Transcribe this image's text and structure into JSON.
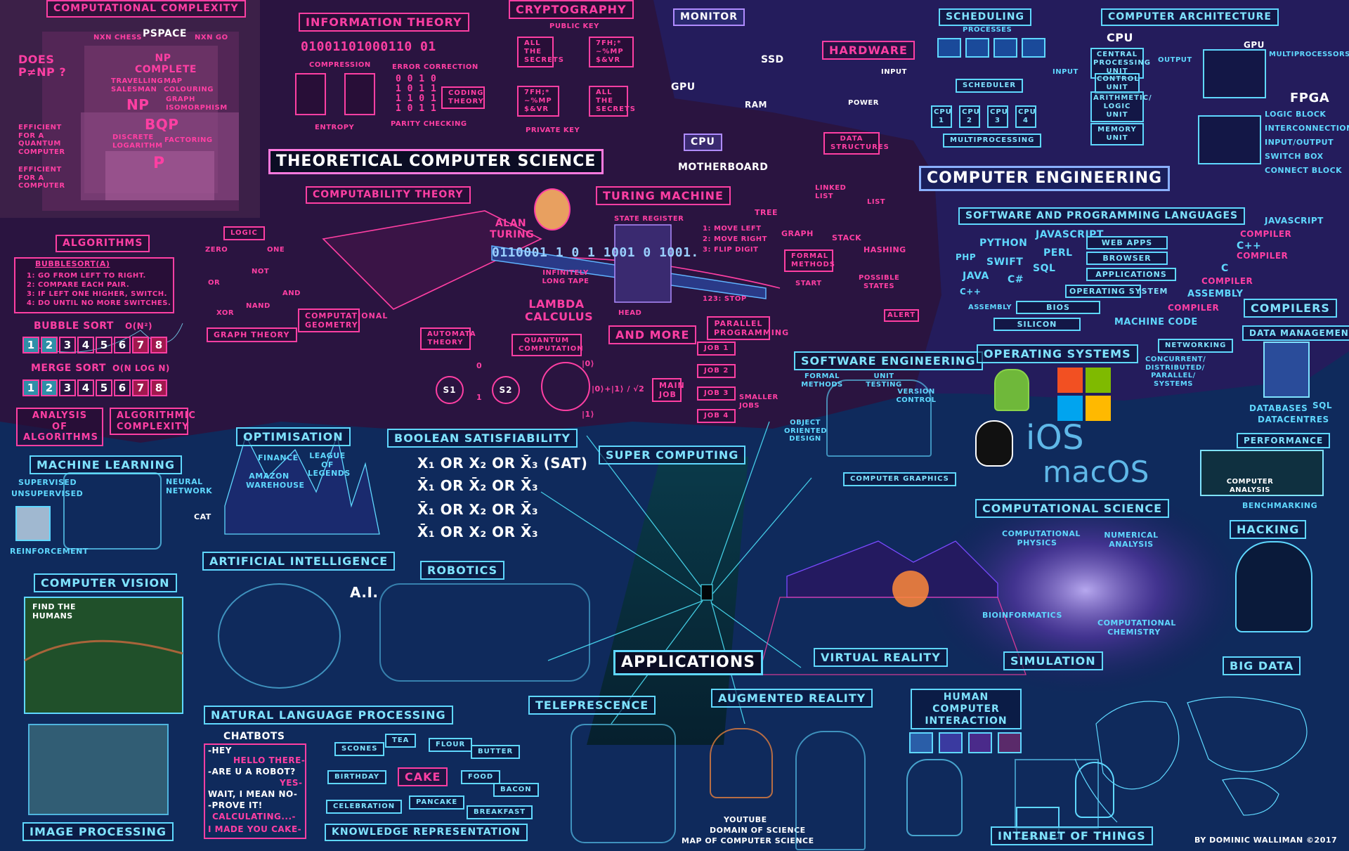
{
  "colors": {
    "background": "#0e1640",
    "theory_region": "#2a1440",
    "engineering_region": "#241c5c",
    "applications_region": "#0f2a5c",
    "theory_accent": "#ff3fa3",
    "applications_accent": "#5fd8ff"
  },
  "titles": {
    "theoretical": "THEORETICAL COMPUTER SCIENCE",
    "engineering": "COMPUTER ENGINEERING",
    "applications": "APPLICATIONS"
  },
  "complexity": {
    "header": "COMPUTATIONAL COMPLEXITY",
    "question": "DOES P≠NP ?",
    "nxn_chess": "NXN CHESS",
    "pspace": "PSPACE",
    "nxn_go": "NXN GO",
    "np_complete": "NP COMPLETE",
    "travelling_salesman": "TRAVELLING SALESMAN",
    "map_colouring": "MAP COLOURING",
    "np": "NP",
    "graph_isomorphism": "GRAPH ISOMORPHISM",
    "bqp": "BQP",
    "discrete_logarithm": "DISCRETE LOGARITHM",
    "factoring": "FACTORING",
    "p": "P",
    "efficient_quantum": "EFFICIENT FOR A QUANTUM COMPUTER",
    "efficient_computer": "EFFICIENT FOR A COMPUTER"
  },
  "info_theory": {
    "header": "INFORMATION THEORY",
    "bits": "01001101000110 01",
    "compression": "COMPRESSION",
    "error_correction": "ERROR CORRECTION",
    "parity_rows": [
      "0 0 1 0",
      "1 0 1 1",
      "1 1 0 1",
      "1 0 1 1"
    ],
    "coding_theory": "CODING THEORY",
    "entropy": "ENTROPY",
    "parity_checking": "PARITY CHECKING"
  },
  "crypto": {
    "header": "CRYPTOGRAPHY",
    "public_key": "PUBLIC KEY",
    "private_key": "PRIVATE KEY",
    "plain": "ALL THE SECRETS",
    "cipher": "7fh;* ~%mp $&vr"
  },
  "hardware": {
    "monitor": "MONITOR",
    "gpu": "GPU",
    "ssd": "SSD",
    "ram": "RAM",
    "cpu": "CPU",
    "motherboard": "MOTHERBOARD",
    "hardware": "HARDWARE",
    "input": "INPUT",
    "power": "POWER"
  },
  "scheduling": {
    "header": "SCHEDULING",
    "processes": "PROCESSES",
    "scheduler": "SCHEDULER",
    "cpus": [
      "CPU 1",
      "CPU 2",
      "CPU 3",
      "CPU 4"
    ],
    "multiprocessing": "MULTIPROCESSING"
  },
  "architecture": {
    "header": "COMPUTER ARCHITECTURE",
    "cpu": "CPU",
    "input": "INPUT",
    "output": "OUTPUT",
    "cpu_unit": "CENTRAL PROCESSING UNIT",
    "control_unit": "CONTROL UNIT",
    "alu": "ARITHMETIC/ LOGIC UNIT",
    "memory_unit": "MEMORY UNIT",
    "gpu": "GPU",
    "multiprocessors": "MULTIPROCESSORS",
    "fpga": "FPGA",
    "fpga_items": [
      "LOGIC BLOCK",
      "INTERCONNECTION",
      "INPUT/OUTPUT",
      "SWITCH BOX",
      "CONNECT BLOCK"
    ]
  },
  "computability": {
    "header": "COMPUTABILITY THEORY",
    "alan_turing": "ALAN TURING",
    "turing_header": "TURING MACHINE",
    "state_register": "STATE REGISTER",
    "tape": "0110001 1 0 1 1001 0 1001.",
    "infinitely_long_tape": "INFINITELY LONG TAPE",
    "head": "HEAD",
    "lambda": "LAMBDA CALCULUS",
    "rules": [
      "1: MOVE LEFT",
      "2: MOVE RIGHT",
      "3: FLIP DIGIT",
      "123: STOP"
    ],
    "and_more": "AND MORE"
  },
  "data_structures": {
    "header": "DATA STRUCTURES",
    "linked_list": "LINKED LIST",
    "list": "LIST",
    "tree": "TREE",
    "graph": "GRAPH",
    "stack": "STACK",
    "hashing": "HASHING",
    "formal_methods": "FORMAL METHODS",
    "start": "START",
    "possible_states": "POSSIBLE STATES",
    "alert": "ALERT"
  },
  "logic": {
    "header": "LOGIC",
    "zero": "ZERO",
    "one": "ONE",
    "or": "OR",
    "not": "NOT",
    "xor": "XOR",
    "nand": "NAND",
    "and": "AND"
  },
  "algorithms": {
    "header": "ALGORITHMS",
    "bubblesort_fn": "BUBBLESORT(A)",
    "steps": [
      "1: GO FROM LEFT TO RIGHT.",
      "2: COMPARE EACH PAIR.",
      "3: IF LEFT ONE HIGHER, SWITCH.",
      "4: DO UNTIL NO MORE SWITCHES."
    ],
    "bubble_sort": "BUBBLE SORT",
    "bubble_complexity": "O(n²)",
    "merge_sort": "MERGE SORT",
    "merge_complexity": "O(n log n)",
    "cells": [
      "1",
      "2",
      "3",
      "4",
      "5",
      "6",
      "7",
      "8"
    ],
    "analysis": "ANALYSIS OF ALGORITHMS",
    "algo_complexity": "ALGORITHMIC COMPLEXITY"
  },
  "theory_misc": {
    "graph_theory": "GRAPH THEORY",
    "comp_geometry": "COMPUTATIONAL GEOMETRY",
    "automata": "AUTOMATA THEORY",
    "s1": "S1",
    "s2": "S2",
    "zero": "0",
    "one": "1",
    "quantum": "QUANTUM COMPUTATION",
    "ket0": "|0⟩",
    "ket_sup": "|0⟩+|1⟩ / √2",
    "ket1": "|1⟩",
    "parallel": "PARALLEL PROGRAMMING",
    "main_job": "MAIN JOB",
    "jobs": [
      "JOB 1",
      "JOB 2",
      "JOB 3",
      "JOB 4"
    ],
    "smaller_jobs": "SMALLER JOBS"
  },
  "languages": {
    "header": "SOFTWARE AND PROGRAMMING LANGUAGES",
    "python": "PYTHON",
    "javascript": "JAVASCRIPT",
    "php": "PHP",
    "swift": "SWIFT",
    "perl": "PERL",
    "sql": "SQL",
    "java": "JAVA",
    "csharp": "C#",
    "cpp": "C++",
    "assembly": "ASSEMBLY",
    "stack": [
      "WEB APPS",
      "BROWSER",
      "APPLICATIONS",
      "OPERATING SYSTEM",
      "BIOS",
      "SILICON"
    ],
    "machine_code": "MACHINE CODE",
    "chain": [
      "JAVASCRIPT",
      "COMPILER",
      "C++",
      "COMPILER",
      "C",
      "COMPILER",
      "ASSEMBLY",
      "COMPILER"
    ],
    "compilers": "COMPILERS"
  },
  "software_eng": {
    "header": "SOFTWARE ENGINEERING",
    "formal_methods": "FORMAL METHODS",
    "unit_testing": "UNIT TESTING",
    "version_control": "VERSION CONTROL",
    "ood": "OBJECT ORIENTED DESIGN"
  },
  "os": {
    "header": "OPERATING SYSTEMS",
    "ios": "iOS",
    "macos": "macOS"
  },
  "data_mgmt": {
    "header": "DATA MANAGEMENT",
    "networking": "NETWORKING",
    "concurrent": "CONCURRENT/ DISTRIBUTED/ PARALLEL/ SYSTEMS",
    "databases": "DATABASES",
    "sql": "SQL",
    "datacentres": "DATACENTRES",
    "performance": "PERFORMANCE",
    "computer_analysis": "COMPUTER ANALYSIS",
    "benchmarking": "BENCHMARKING"
  },
  "applications": {
    "machine_learning": "MACHINE LEARNING",
    "supervised": "SUPERVISED",
    "unsupervised": "UNSUPERVISED",
    "reinforcement": "REINFORCEMENT",
    "neural_network": "NEURAL NETWORK",
    "cat": "CAT",
    "optimisation": "OPTIMISATION",
    "finance": "FINANCE",
    "league": "LEAGUE OF LEGENDS",
    "amazon": "AMAZON WAREHOUSE",
    "sat_header": "BOOLEAN SATISFIABILITY",
    "sat_rows": [
      "x₁ OR x₂ OR x̄₃ (SAT)",
      "x̄₁ OR x̄₂ OR x̄₃",
      "x̄₁ OR x₂ OR x̄₃",
      "x̄₁ OR x₂ OR x̄₃"
    ],
    "super_computing": "SUPER COMPUTING",
    "computer_graphics": "COMPUTER GRAPHICS",
    "comp_science": "COMPUTATIONAL SCIENCE",
    "comp_physics": "COMPUTATIONAL PHYSICS",
    "numerical_analysis": "NUMERICAL ANALYSIS",
    "bioinformatics": "BIOINFORMATICS",
    "comp_chemistry": "COMPUTATIONAL CHEMISTRY",
    "hacking": "HACKING",
    "computer_vision": "COMPUTER VISION",
    "find_humans": "FIND THE HUMANS",
    "ai": "ARTIFICIAL INTELLIGENCE",
    "ai_short": "A.I.",
    "robotics": "ROBOTICS",
    "virtual_reality": "VIRTUAL REALITY",
    "simulation": "SIMULATION",
    "big_data": "BIG DATA",
    "image_processing": "IMAGE PROCESSING",
    "nlp": "NATURAL LANGUAGE PROCESSING",
    "chatbots": "CHATBOTS",
    "chat_lines": [
      "-HEY",
      "HELLO THERE-",
      "-ARE U A ROBOT?",
      "YES-",
      "WAIT, I MEAN NO-",
      "-PROVE IT!",
      "CALCULATING...-",
      "I MADE YOU CAKE-"
    ],
    "kr": [
      "SCONES",
      "TEA",
      "FLOUR",
      "BUTTER",
      "BIRTHDAY",
      "CAKE",
      "FOOD",
      "BACON",
      "CELEBRATION",
      "PANCAKE",
      "BREAKFAST"
    ],
    "knowledge_rep": "KNOWLEDGE REPRESENTATION",
    "telepresence": "TELEPRESCENCE",
    "augmented_reality": "AUGMENTED REALITY",
    "youtube": "YOUTUBE",
    "domain_of_science": "DOMAIN OF SCIENCE",
    "map_of_cs": "MAP OF COMPUTER SCIENCE",
    "hci": "HUMAN COMPUTER INTERACTION",
    "iot": "INTERNET OF THINGS",
    "credit": "BY DOMINIC WALLIMAN ©2017"
  }
}
